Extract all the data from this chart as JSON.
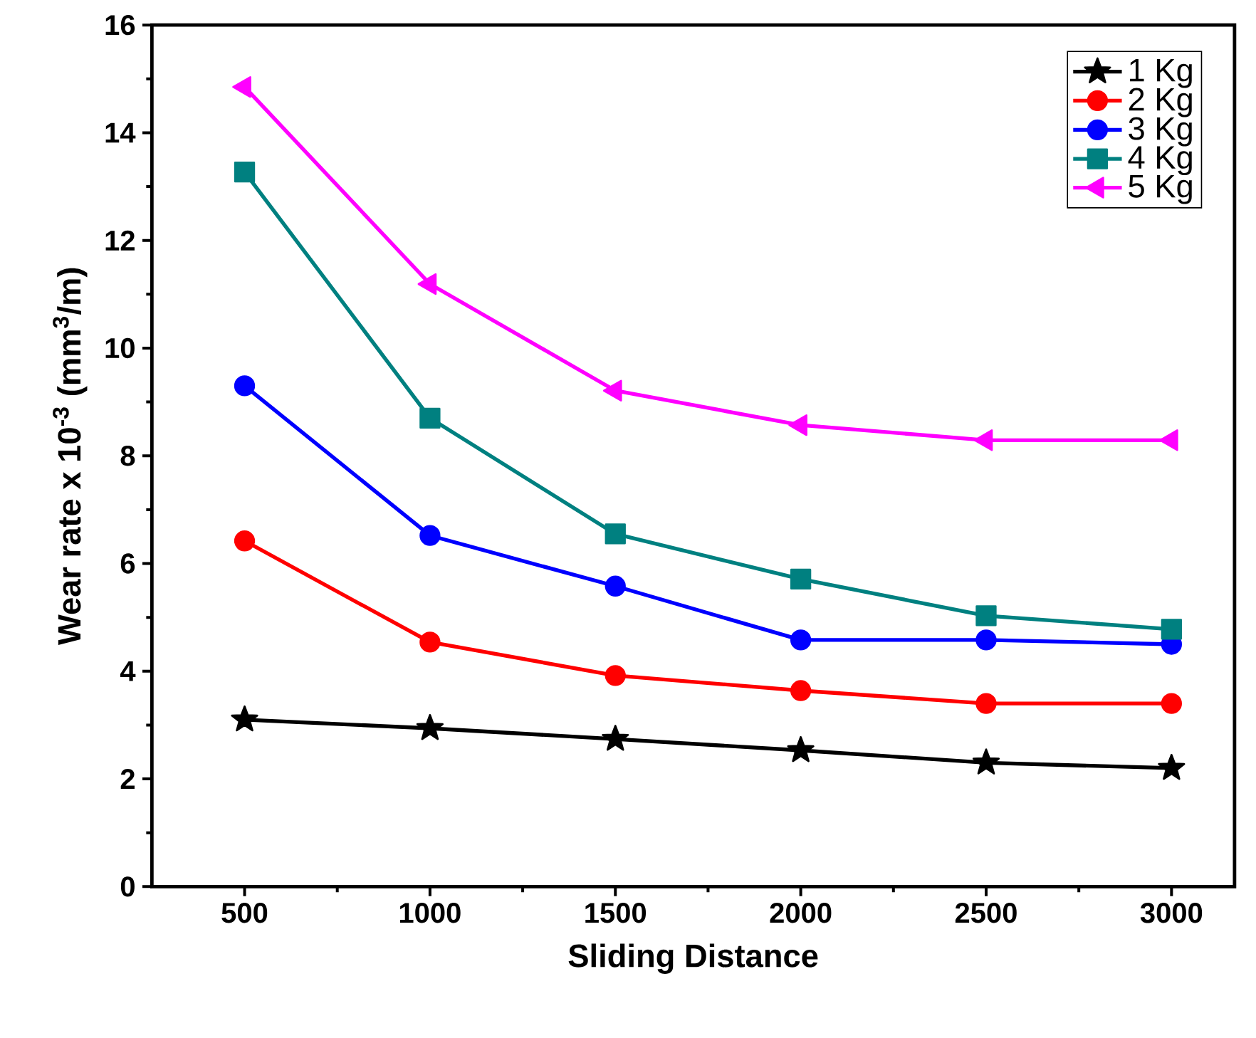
{
  "chart_data": {
    "type": "line",
    "xlabel": "Sliding Distance",
    "ylabel": "Wear rate x 10$^{-3}$ (mm$^{3}$/m)",
    "x": [
      500,
      1000,
      1500,
      2000,
      2500,
      3000
    ],
    "xlim": [
      250,
      3170
    ],
    "xticks": [
      500,
      1000,
      1500,
      2000,
      2500,
      3000
    ],
    "ylim": [
      0,
      16
    ],
    "yticks": [
      0,
      2,
      4,
      6,
      8,
      10,
      12,
      14,
      16
    ],
    "legend": "top right",
    "grid": false,
    "line_style": "solid",
    "series": [
      {
        "name": "1 Kg",
        "color": "#000000",
        "marker": "star",
        "values": [
          3.1,
          2.94,
          2.74,
          2.53,
          2.3,
          2.2
        ]
      },
      {
        "name": "2 Kg",
        "color": "#ff0000",
        "marker": "circle",
        "values": [
          6.42,
          4.54,
          3.92,
          3.64,
          3.4,
          3.4
        ]
      },
      {
        "name": "3 Kg",
        "color": "#0000ff",
        "marker": "circle",
        "values": [
          9.3,
          6.52,
          5.58,
          4.58,
          4.58,
          4.5
        ]
      },
      {
        "name": "4 Kg",
        "color": "#008080",
        "marker": "square",
        "values": [
          13.27,
          8.7,
          6.55,
          5.71,
          5.03,
          4.78
        ]
      },
      {
        "name": "5 Kg",
        "color": "#ff00ff",
        "marker": "triangle",
        "values": [
          14.85,
          11.19,
          9.21,
          8.57,
          8.29,
          8.29
        ]
      }
    ]
  }
}
